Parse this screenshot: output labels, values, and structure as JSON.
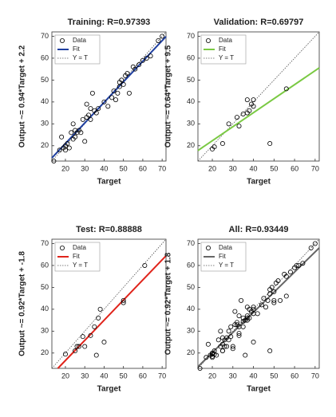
{
  "chart_data": [
    {
      "type": "scatter",
      "title": "Training: R=0.97393",
      "xlabel": "Target",
      "ylabel": "Output ~= 0.94*Target + 2.2",
      "xlim": [
        13,
        72
      ],
      "ylim": [
        13,
        72
      ],
      "xticks": [
        20,
        30,
        40,
        50,
        60,
        70
      ],
      "yticks": [
        20,
        30,
        40,
        50,
        60,
        70
      ],
      "series": [
        {
          "name": "Data",
          "color": "#000000",
          "x": [
            14,
            17,
            18,
            19,
            20,
            20,
            21,
            22,
            23,
            24,
            24,
            25,
            25,
            26,
            27,
            28,
            29,
            30,
            31,
            31,
            32,
            33,
            33,
            34,
            35,
            36,
            37,
            40,
            42,
            44,
            45,
            46,
            47,
            48,
            48,
            49,
            50,
            51,
            52,
            53,
            55,
            56,
            58,
            60,
            62,
            64,
            68,
            70
          ],
          "values": [
            13,
            18,
            24,
            19,
            20,
            18,
            21,
            19,
            26,
            23,
            30,
            24,
            27,
            26,
            27,
            26,
            32,
            22,
            33,
            39,
            34,
            32,
            37,
            44,
            36,
            35,
            37,
            40,
            38,
            42,
            45,
            41,
            44,
            47,
            49,
            50,
            48,
            52,
            53,
            44,
            56,
            55,
            57,
            59,
            60,
            61,
            68,
            70
          ]
        },
        {
          "name": "Fit",
          "color": "#1f3f9f",
          "slope": 0.94,
          "intercept": 2.2
        },
        {
          "name": "Y = T",
          "color": "#555555"
        }
      ]
    },
    {
      "type": "scatter",
      "title": "Validation: R=0.69797",
      "xlabel": "Target",
      "ylabel": "Output ~= 0.64*Target + 9.5",
      "xlim": [
        13,
        72
      ],
      "ylim": [
        13,
        72
      ],
      "xticks": [
        20,
        30,
        40,
        50,
        60,
        70
      ],
      "yticks": [
        20,
        30,
        40,
        50,
        60,
        70
      ],
      "series": [
        {
          "name": "Data",
          "color": "#000000",
          "x": [
            20,
            21,
            25,
            28,
            32,
            33,
            35,
            37,
            37,
            38,
            39,
            40,
            40,
            48,
            56
          ],
          "values": [
            18.5,
            19.5,
            21,
            30,
            33,
            29,
            34.5,
            41,
            35,
            36,
            39,
            38,
            41,
            21,
            46
          ]
        },
        {
          "name": "Fit",
          "color": "#7ac943",
          "slope": 0.64,
          "intercept": 9.5
        },
        {
          "name": "Y = T",
          "color": "#555555"
        }
      ]
    },
    {
      "type": "scatter",
      "title": "Test: R=0.88888",
      "xlabel": "Target",
      "ylabel": "Output ~= 0.92*Target + -1.8",
      "xlim": [
        13,
        72
      ],
      "ylim": [
        13,
        72
      ],
      "xticks": [
        20,
        30,
        40,
        50,
        60,
        70
      ],
      "yticks": [
        20,
        30,
        40,
        50,
        60,
        70
      ],
      "series": [
        {
          "name": "Data",
          "color": "#000000",
          "x": [
            20,
            25,
            26,
            27,
            29,
            30,
            33,
            35,
            36,
            37,
            38,
            40,
            50,
            50,
            61
          ],
          "values": [
            19.5,
            21,
            23,
            23,
            27.5,
            23,
            28,
            32,
            19,
            36,
            40,
            25,
            43,
            44,
            60
          ]
        },
        {
          "name": "Fit",
          "color": "#e0241b",
          "slope": 0.92,
          "intercept": -1.8
        },
        {
          "name": "Y = T",
          "color": "#555555"
        }
      ]
    },
    {
      "type": "scatter",
      "title": "All: R=0.93449",
      "xlabel": "Target",
      "ylabel": "Output ~= 0.92*Target + 1.8",
      "xlim": [
        13,
        72
      ],
      "ylim": [
        13,
        72
      ],
      "xticks": [
        20,
        30,
        40,
        50,
        60,
        70
      ],
      "yticks": [
        20,
        30,
        40,
        50,
        60,
        70
      ],
      "series": [
        {
          "name": "Data",
          "color": "#000000",
          "x": [
            14,
            17,
            18,
            19,
            20,
            20,
            21,
            22,
            23,
            24,
            24,
            25,
            25,
            26,
            27,
            28,
            29,
            30,
            31,
            31,
            32,
            33,
            33,
            34,
            35,
            36,
            37,
            40,
            42,
            44,
            45,
            46,
            47,
            48,
            48,
            49,
            50,
            51,
            52,
            53,
            55,
            56,
            58,
            60,
            62,
            64,
            68,
            70,
            20,
            21,
            25,
            28,
            32,
            33,
            35,
            37,
            37,
            38,
            39,
            40,
            40,
            48,
            56,
            20,
            25,
            26,
            27,
            29,
            30,
            33,
            35,
            36,
            37,
            38,
            40,
            50,
            50,
            61
          ],
          "values": [
            13,
            18,
            24,
            19,
            20,
            18,
            21,
            19,
            26,
            23,
            30,
            24,
            27,
            26,
            27,
            26,
            32,
            22,
            33,
            39,
            34,
            32,
            37,
            44,
            36,
            35,
            37,
            40,
            38,
            42,
            45,
            41,
            44,
            47,
            49,
            50,
            48,
            52,
            53,
            44,
            56,
            55,
            57,
            59,
            60,
            61,
            68,
            70,
            18.5,
            19.5,
            21,
            30,
            33,
            29,
            34.5,
            41,
            35,
            36,
            39,
            38,
            41,
            21,
            46,
            19.5,
            21,
            23,
            23,
            27.5,
            23,
            28,
            32,
            19,
            36,
            40,
            25,
            43,
            44,
            60
          ]
        },
        {
          "name": "Fit",
          "color": "#666666",
          "slope": 0.92,
          "intercept": 1.8
        },
        {
          "name": "Y = T",
          "color": "#555555"
        }
      ]
    }
  ]
}
